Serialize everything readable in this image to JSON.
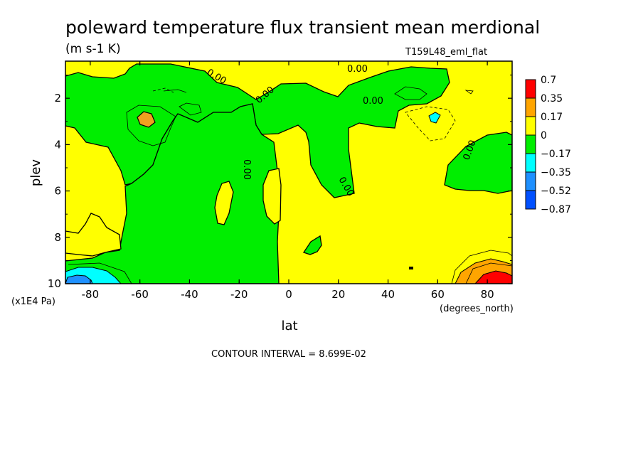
{
  "chart_data": {
    "type": "heatmap",
    "title": "poleward temperature flux transient mean merdional",
    "units": "(m s-1 K)",
    "run_label": "T159L48_eml_flat",
    "xlabel": "lat",
    "x_unit_label": "(degrees_north)",
    "ylabel": "plev",
    "y_unit_label": "(x1E4 Pa)",
    "xlim": [
      -90,
      90
    ],
    "ylim": [
      0.4,
      10
    ],
    "y_reversed": true,
    "x_ticks": [
      -80,
      -60,
      -40,
      -20,
      0,
      20,
      40,
      60,
      80
    ],
    "x_tick_labels": [
      "-80",
      "-60",
      "-40",
      "-20",
      "0",
      "20",
      "40",
      "60",
      "80"
    ],
    "y_ticks": [
      2,
      4,
      6,
      8,
      10
    ],
    "y_tick_labels": [
      "2",
      "4",
      "6",
      "8",
      "10"
    ],
    "contour_interval_text": "CONTOUR INTERVAL = 8.699E-02",
    "contour_labels": [
      "0.00",
      "0.00",
      "0.00",
      "0.00",
      "0.00",
      "0.00",
      "0.00"
    ],
    "legend": {
      "placement": "right",
      "levels": [
        "0.7",
        "0.35",
        "0.17",
        "0",
        "−0.17",
        "−0.35",
        "−0.52",
        "−0.87"
      ],
      "colors": [
        "#ff0000",
        "#ffa500",
        "#ffff00",
        "#00ee00",
        "#00ffff",
        "#1e90ff",
        "#0050ff"
      ]
    },
    "regions": [
      {
        "kind": "positive",
        "lat": -90,
        "plev": 0.4
      },
      {
        "kind": "negative",
        "lat": -60,
        "plev": 1.5
      },
      {
        "kind": "negative",
        "lat": -30,
        "plev": 5
      },
      {
        "kind": "positive",
        "lat": -27,
        "plev": 6.7
      },
      {
        "kind": "positive",
        "lat": -10,
        "plev": 6.2
      },
      {
        "kind": "positive",
        "lat": 35,
        "plev": 6
      },
      {
        "kind": "negative",
        "lat": 18,
        "plev": 4
      },
      {
        "kind": "negative",
        "lat": 65,
        "plev": 3.2
      },
      {
        "kind": "positive",
        "lat": -59,
        "plev": 2.6,
        "value": 0.26
      },
      {
        "kind": "negative",
        "lat": 58,
        "plev": 2.6,
        "value": -0.2
      },
      {
        "kind": "positive",
        "lat": 82,
        "plev": 9.7,
        "value": 0.7
      },
      {
        "kind": "negative",
        "lat": -80,
        "plev": 9.7,
        "value": -0.35
      }
    ]
  }
}
